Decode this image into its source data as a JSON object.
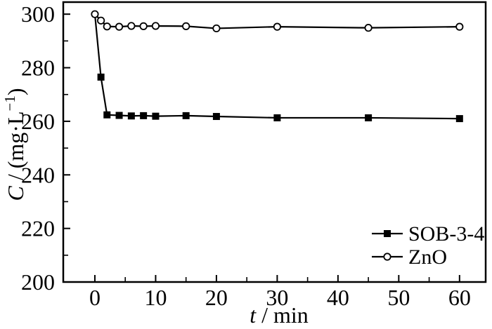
{
  "page": {
    "background": "#ffffff",
    "foreground": "#000000"
  },
  "chart_data": {
    "type": "line",
    "title": "",
    "xlabel": "t / min",
    "ylabel": "C / (mg·L⁻¹)",
    "xlabel_parts": [
      {
        "text": "t",
        "italic": true
      },
      {
        "text": " / min",
        "italic": false
      }
    ],
    "ylabel_parts": [
      {
        "text": "C",
        "italic": true
      },
      {
        "text": " / (mg·L",
        "italic": false
      },
      {
        "text": "−1",
        "sup": true
      },
      {
        "text": ")",
        "italic": false
      }
    ],
    "xlim": [
      -5.2,
      64.3
    ],
    "ylim": [
      200,
      304.5
    ],
    "x": [
      0,
      1,
      2,
      4,
      6,
      8,
      10,
      15,
      20,
      30,
      45,
      60
    ],
    "series": [
      {
        "name": "SOB-3-4",
        "marker": "filled-square",
        "color": "#000000",
        "hidden_markers": [
          0
        ],
        "values": [
          300,
          276.5,
          262.4,
          262.2,
          262.0,
          262.1,
          261.9,
          262.1,
          261.8,
          261.3,
          261.3,
          261.0
        ]
      },
      {
        "name": "ZnO",
        "marker": "open-circle",
        "color": "#000000",
        "hidden_markers": [],
        "values": [
          300,
          297.6,
          295.4,
          295.3,
          295.6,
          295.5,
          295.6,
          295.5,
          294.7,
          295.3,
          294.9,
          295.3
        ]
      }
    ],
    "x_major_ticks": [
      0,
      10,
      20,
      30,
      40,
      50,
      60
    ],
    "x_minor_ticks": [
      5,
      15,
      25,
      35,
      45,
      55
    ],
    "y_major_ticks": [
      200,
      220,
      240,
      260,
      280,
      300
    ],
    "y_minor_ticks": [
      210,
      230,
      250,
      270,
      290
    ],
    "grid": false,
    "legend": {
      "position": "lower-right",
      "entries": [
        "SOB-3-4",
        "ZnO"
      ]
    }
  }
}
